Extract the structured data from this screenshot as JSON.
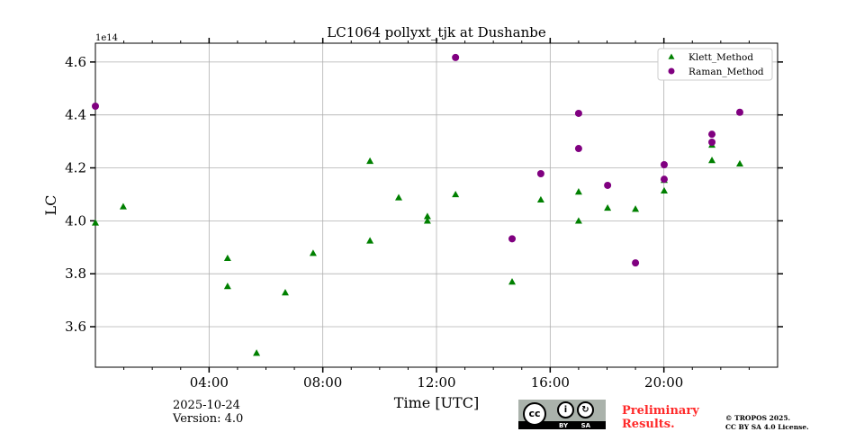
{
  "chart_data": {
    "type": "scatter",
    "title": "LC1064 pollyxt_tjk at Dushanbe",
    "xlabel": "Time [UTC]",
    "ylabel": "LC",
    "y_offset_label": "1e14",
    "xlim": [
      0,
      24
    ],
    "ylim": [
      3.447,
      4.671
    ],
    "x_ticks": [
      {
        "v": 4,
        "label": "04:00"
      },
      {
        "v": 8,
        "label": "08:00"
      },
      {
        "v": 12,
        "label": "12:00"
      },
      {
        "v": 16,
        "label": "16:00"
      },
      {
        "v": 20,
        "label": "20:00"
      }
    ],
    "y_ticks": [
      {
        "v": 3.6,
        "label": "3.6"
      },
      {
        "v": 3.8,
        "label": "3.8"
      },
      {
        "v": 4.0,
        "label": "4.0"
      },
      {
        "v": 4.2,
        "label": "4.2"
      },
      {
        "v": 4.4,
        "label": "4.4"
      },
      {
        "v": 4.6,
        "label": "4.6"
      }
    ],
    "grid": true,
    "legend_position": "top-right",
    "series": [
      {
        "name": "Klett_Method",
        "marker": "triangle",
        "color": "#008000",
        "x": [
          0,
          0.98,
          4.65,
          4.65,
          5.67,
          6.68,
          7.66,
          9.66,
          9.66,
          10.67,
          11.68,
          11.68,
          12.67,
          14.66,
          15.67,
          17.0,
          17.0,
          18.02,
          19.0,
          20.01,
          20.01,
          21.69,
          21.69,
          22.67
        ],
        "y": [
          3.993,
          4.054,
          3.859,
          3.753,
          3.501,
          3.729,
          3.878,
          4.226,
          3.925,
          4.088,
          4.017,
          4.0,
          4.1,
          3.77,
          4.08,
          4.11,
          4.0,
          4.049,
          4.045,
          4.154,
          4.114,
          4.287,
          4.229,
          4.216
        ]
      },
      {
        "name": "Raman_Method",
        "marker": "circle",
        "color": "#800080",
        "x": [
          0,
          12.67,
          14.66,
          15.67,
          17.0,
          17.0,
          18.02,
          19.0,
          20.01,
          20.01,
          21.69,
          21.69,
          22.67
        ],
        "y": [
          4.433,
          4.617,
          3.932,
          4.178,
          4.406,
          4.273,
          4.134,
          3.841,
          4.212,
          4.157,
          4.327,
          4.297,
          4.41
        ]
      }
    ]
  },
  "footer": {
    "date": "2025-10-24",
    "version": "Version: 4.0",
    "preliminary": "Preliminary Results.",
    "copyright": "© TROPOS 2025.",
    "license": "CC BY SA 4.0 License.",
    "cc_logo_text": "cc BY SA"
  }
}
